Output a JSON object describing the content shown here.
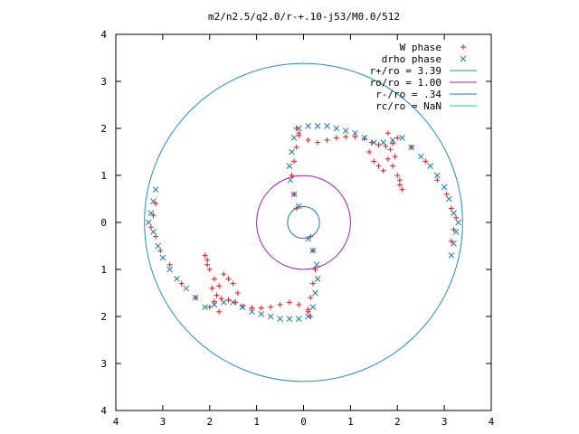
{
  "chart_data": {
    "type": "scatter",
    "title": "m2/n2.5/q2.0/r-+.10-j53/M0.0/512",
    "xlabel": "",
    "ylabel": "",
    "xlim": [
      -4,
      4
    ],
    "ylim": [
      -4,
      4
    ],
    "x_ticks": [
      {
        "value": -4,
        "label": "4"
      },
      {
        "value": -3,
        "label": "3"
      },
      {
        "value": -2,
        "label": "2"
      },
      {
        "value": -1,
        "label": "1"
      },
      {
        "value": 0,
        "label": "0"
      },
      {
        "value": 1,
        "label": "1"
      },
      {
        "value": 2,
        "label": "2"
      },
      {
        "value": 3,
        "label": "3"
      },
      {
        "value": 4,
        "label": "4"
      }
    ],
    "y_ticks": [
      {
        "value": -4,
        "label": "4"
      },
      {
        "value": -3,
        "label": "3"
      },
      {
        "value": -2,
        "label": "2"
      },
      {
        "value": -1,
        "label": "1"
      },
      {
        "value": 0,
        "label": "0"
      },
      {
        "value": 1,
        "label": "1"
      },
      {
        "value": 2,
        "label": "2"
      },
      {
        "value": 3,
        "label": "3"
      },
      {
        "value": 4,
        "label": "4"
      }
    ],
    "grid": false,
    "legend_position": "top-right",
    "series": [
      {
        "name": "W phase",
        "marker": "+",
        "color": "#e41a1c",
        "points": [
          [
            -0.15,
            0.3
          ],
          [
            -0.2,
            0.6
          ],
          [
            -0.25,
            1.0
          ],
          [
            -0.2,
            1.3
          ],
          [
            -0.15,
            1.6
          ],
          [
            -0.1,
            1.85
          ],
          [
            -0.15,
            2.0
          ],
          [
            -0.1,
            1.9
          ],
          [
            0.1,
            1.75
          ],
          [
            0.3,
            1.7
          ],
          [
            0.5,
            1.75
          ],
          [
            0.7,
            1.8
          ],
          [
            0.9,
            1.82
          ],
          [
            1.1,
            1.82
          ],
          [
            1.3,
            1.78
          ],
          [
            1.45,
            1.7
          ],
          [
            1.6,
            1.65
          ],
          [
            1.75,
            1.62
          ],
          [
            1.9,
            1.68
          ],
          [
            2.0,
            1.8
          ],
          [
            1.8,
            1.9
          ],
          [
            1.8,
            1.35
          ],
          [
            1.9,
            1.2
          ],
          [
            2.0,
            1.0
          ],
          [
            2.05,
            0.8
          ],
          [
            2.1,
            0.7
          ],
          [
            2.05,
            0.9
          ],
          [
            1.95,
            1.4
          ],
          [
            1.85,
            1.55
          ],
          [
            1.4,
            1.5
          ],
          [
            1.5,
            1.3
          ],
          [
            1.6,
            1.2
          ],
          [
            1.7,
            1.1
          ],
          [
            2.3,
            1.6
          ],
          [
            2.6,
            1.3
          ],
          [
            2.85,
            0.9
          ],
          [
            3.05,
            0.6
          ],
          [
            3.15,
            0.3
          ],
          [
            3.25,
            0.1
          ],
          [
            3.2,
            -0.15
          ],
          [
            3.15,
            -0.4
          ],
          [
            0.15,
            -0.3
          ],
          [
            0.2,
            -0.6
          ],
          [
            0.25,
            -1.0
          ],
          [
            0.2,
            -1.3
          ],
          [
            0.15,
            -1.6
          ],
          [
            0.1,
            -1.85
          ],
          [
            0.15,
            -2.0
          ],
          [
            0.1,
            -1.9
          ],
          [
            -0.1,
            -1.75
          ],
          [
            -0.3,
            -1.7
          ],
          [
            -0.5,
            -1.75
          ],
          [
            -0.7,
            -1.8
          ],
          [
            -0.9,
            -1.82
          ],
          [
            -1.1,
            -1.82
          ],
          [
            -1.3,
            -1.78
          ],
          [
            -1.45,
            -1.7
          ],
          [
            -1.6,
            -1.65
          ],
          [
            -1.75,
            -1.62
          ],
          [
            -1.9,
            -1.68
          ],
          [
            -2.0,
            -1.8
          ],
          [
            -1.8,
            -1.9
          ],
          [
            -1.8,
            -1.35
          ],
          [
            -1.9,
            -1.2
          ],
          [
            -2.0,
            -1.0
          ],
          [
            -2.05,
            -0.8
          ],
          [
            -2.1,
            -0.7
          ],
          [
            -2.05,
            -0.9
          ],
          [
            -1.95,
            -1.4
          ],
          [
            -1.85,
            -1.55
          ],
          [
            -1.4,
            -1.5
          ],
          [
            -1.5,
            -1.3
          ],
          [
            -1.6,
            -1.2
          ],
          [
            -1.7,
            -1.1
          ],
          [
            -2.3,
            -1.6
          ],
          [
            -2.6,
            -1.3
          ],
          [
            -2.85,
            -0.9
          ],
          [
            -3.05,
            -0.6
          ],
          [
            -3.15,
            -0.3
          ],
          [
            -3.25,
            -0.1
          ],
          [
            -3.2,
            0.15
          ],
          [
            -3.15,
            0.4
          ]
        ]
      },
      {
        "name": "drho phase",
        "marker": "x",
        "color": "#1f78b4",
        "points": [
          [
            -0.1,
            0.35
          ],
          [
            -0.2,
            0.6
          ],
          [
            -0.28,
            0.9
          ],
          [
            -0.3,
            1.2
          ],
          [
            -0.25,
            1.5
          ],
          [
            -0.2,
            1.8
          ],
          [
            -0.1,
            2.0
          ],
          [
            0.1,
            2.05
          ],
          [
            0.3,
            2.05
          ],
          [
            0.5,
            2.05
          ],
          [
            0.7,
            2.0
          ],
          [
            0.9,
            1.95
          ],
          [
            1.1,
            1.9
          ],
          [
            1.3,
            1.8
          ],
          [
            1.5,
            1.7
          ],
          [
            1.7,
            1.7
          ],
          [
            1.9,
            1.75
          ],
          [
            2.1,
            1.8
          ],
          [
            2.3,
            1.6
          ],
          [
            2.5,
            1.4
          ],
          [
            2.7,
            1.2
          ],
          [
            2.85,
            1.0
          ],
          [
            3.0,
            0.75
          ],
          [
            3.1,
            0.5
          ],
          [
            3.2,
            0.2
          ],
          [
            3.3,
            0.0
          ],
          [
            3.25,
            -0.2
          ],
          [
            3.2,
            -0.45
          ],
          [
            3.15,
            -0.7
          ],
          [
            0.1,
            -0.35
          ],
          [
            0.2,
            -0.6
          ],
          [
            0.28,
            -0.9
          ],
          [
            0.3,
            -1.2
          ],
          [
            0.25,
            -1.5
          ],
          [
            0.2,
            -1.8
          ],
          [
            0.1,
            -2.0
          ],
          [
            -0.1,
            -2.05
          ],
          [
            -0.3,
            -2.05
          ],
          [
            -0.5,
            -2.05
          ],
          [
            -0.7,
            -2.0
          ],
          [
            -0.9,
            -1.95
          ],
          [
            -1.1,
            -1.9
          ],
          [
            -1.3,
            -1.8
          ],
          [
            -1.5,
            -1.7
          ],
          [
            -1.7,
            -1.7
          ],
          [
            -1.9,
            -1.75
          ],
          [
            -2.1,
            -1.8
          ],
          [
            -2.3,
            -1.6
          ],
          [
            -2.5,
            -1.4
          ],
          [
            -2.7,
            -1.2
          ],
          [
            -2.85,
            -1.0
          ],
          [
            -3.0,
            -0.75
          ],
          [
            -3.1,
            -0.5
          ],
          [
            -3.2,
            -0.2
          ],
          [
            -3.3,
            0.0
          ],
          [
            -3.25,
            0.2
          ],
          [
            -3.2,
            0.45
          ],
          [
            -3.15,
            0.7
          ]
        ]
      }
    ],
    "circles": [
      {
        "name": "r+/ro = 3.39",
        "radius": 3.39,
        "color": "#1f8fc8"
      },
      {
        "name": "ro/ro = 1.00",
        "radius": 1.0,
        "color": "#a020b0"
      },
      {
        "name": "r-/ro = .34",
        "radius": 0.34,
        "color": "#1f78b4"
      },
      {
        "name": "rc/ro = NaN",
        "radius": null,
        "color": "#17becf"
      }
    ]
  }
}
